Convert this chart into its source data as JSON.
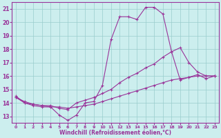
{
  "xlabel": "Windchill (Refroidissement éolien,°C)",
  "background_color": "#bbeebb",
  "plot_bg_color": "#cceeee",
  "grid_color": "#99cccc",
  "line_color": "#993399",
  "xlim": [
    -0.5,
    23.5
  ],
  "ylim": [
    12.5,
    21.5
  ],
  "x_ticks": [
    0,
    1,
    2,
    3,
    4,
    5,
    6,
    7,
    8,
    9,
    10,
    11,
    12,
    13,
    14,
    15,
    16,
    17,
    18,
    19,
    20,
    21,
    22,
    23
  ],
  "y_ticks": [
    13,
    14,
    15,
    16,
    17,
    18,
    19,
    20,
    21
  ],
  "series1_x": [
    0,
    1,
    2,
    3,
    4,
    5,
    6,
    7,
    8,
    9,
    10,
    11,
    12,
    13,
    14,
    15,
    16,
    17,
    18,
    19,
    20,
    21,
    22,
    23
  ],
  "series1_y": [
    14.5,
    14.0,
    13.8,
    13.7,
    13.7,
    13.1,
    12.7,
    13.1,
    14.0,
    14.1,
    15.3,
    18.7,
    20.4,
    20.4,
    20.2,
    21.1,
    21.1,
    20.6,
    17.8,
    18.1,
    17.0,
    16.3,
    16.0,
    16.0
  ],
  "series2_x": [
    0,
    1,
    2,
    3,
    4,
    5,
    6,
    7,
    8,
    9,
    10,
    11,
    12,
    13,
    14,
    15,
    16,
    17,
    18,
    19,
    20,
    21,
    22,
    23
  ],
  "series2_y": [
    14.4,
    14.0,
    13.9,
    13.8,
    13.8,
    13.6,
    13.5,
    14.0,
    14.2,
    14.4,
    14.7,
    15.0,
    15.5,
    15.9,
    16.2,
    16.6,
    16.9,
    17.4,
    17.8,
    15.7,
    15.9,
    16.1,
    15.8,
    16.0
  ],
  "series3_x": [
    0,
    1,
    2,
    3,
    4,
    5,
    6,
    7,
    8,
    9,
    10,
    11,
    12,
    13,
    14,
    15,
    16,
    17,
    18,
    19,
    20,
    21,
    22,
    23
  ],
  "series3_y": [
    14.4,
    14.1,
    13.9,
    13.8,
    13.7,
    13.7,
    13.6,
    13.7,
    13.8,
    13.9,
    14.1,
    14.3,
    14.5,
    14.7,
    14.9,
    15.1,
    15.3,
    15.5,
    15.7,
    15.8,
    15.9,
    16.0,
    16.0,
    16.0
  ]
}
